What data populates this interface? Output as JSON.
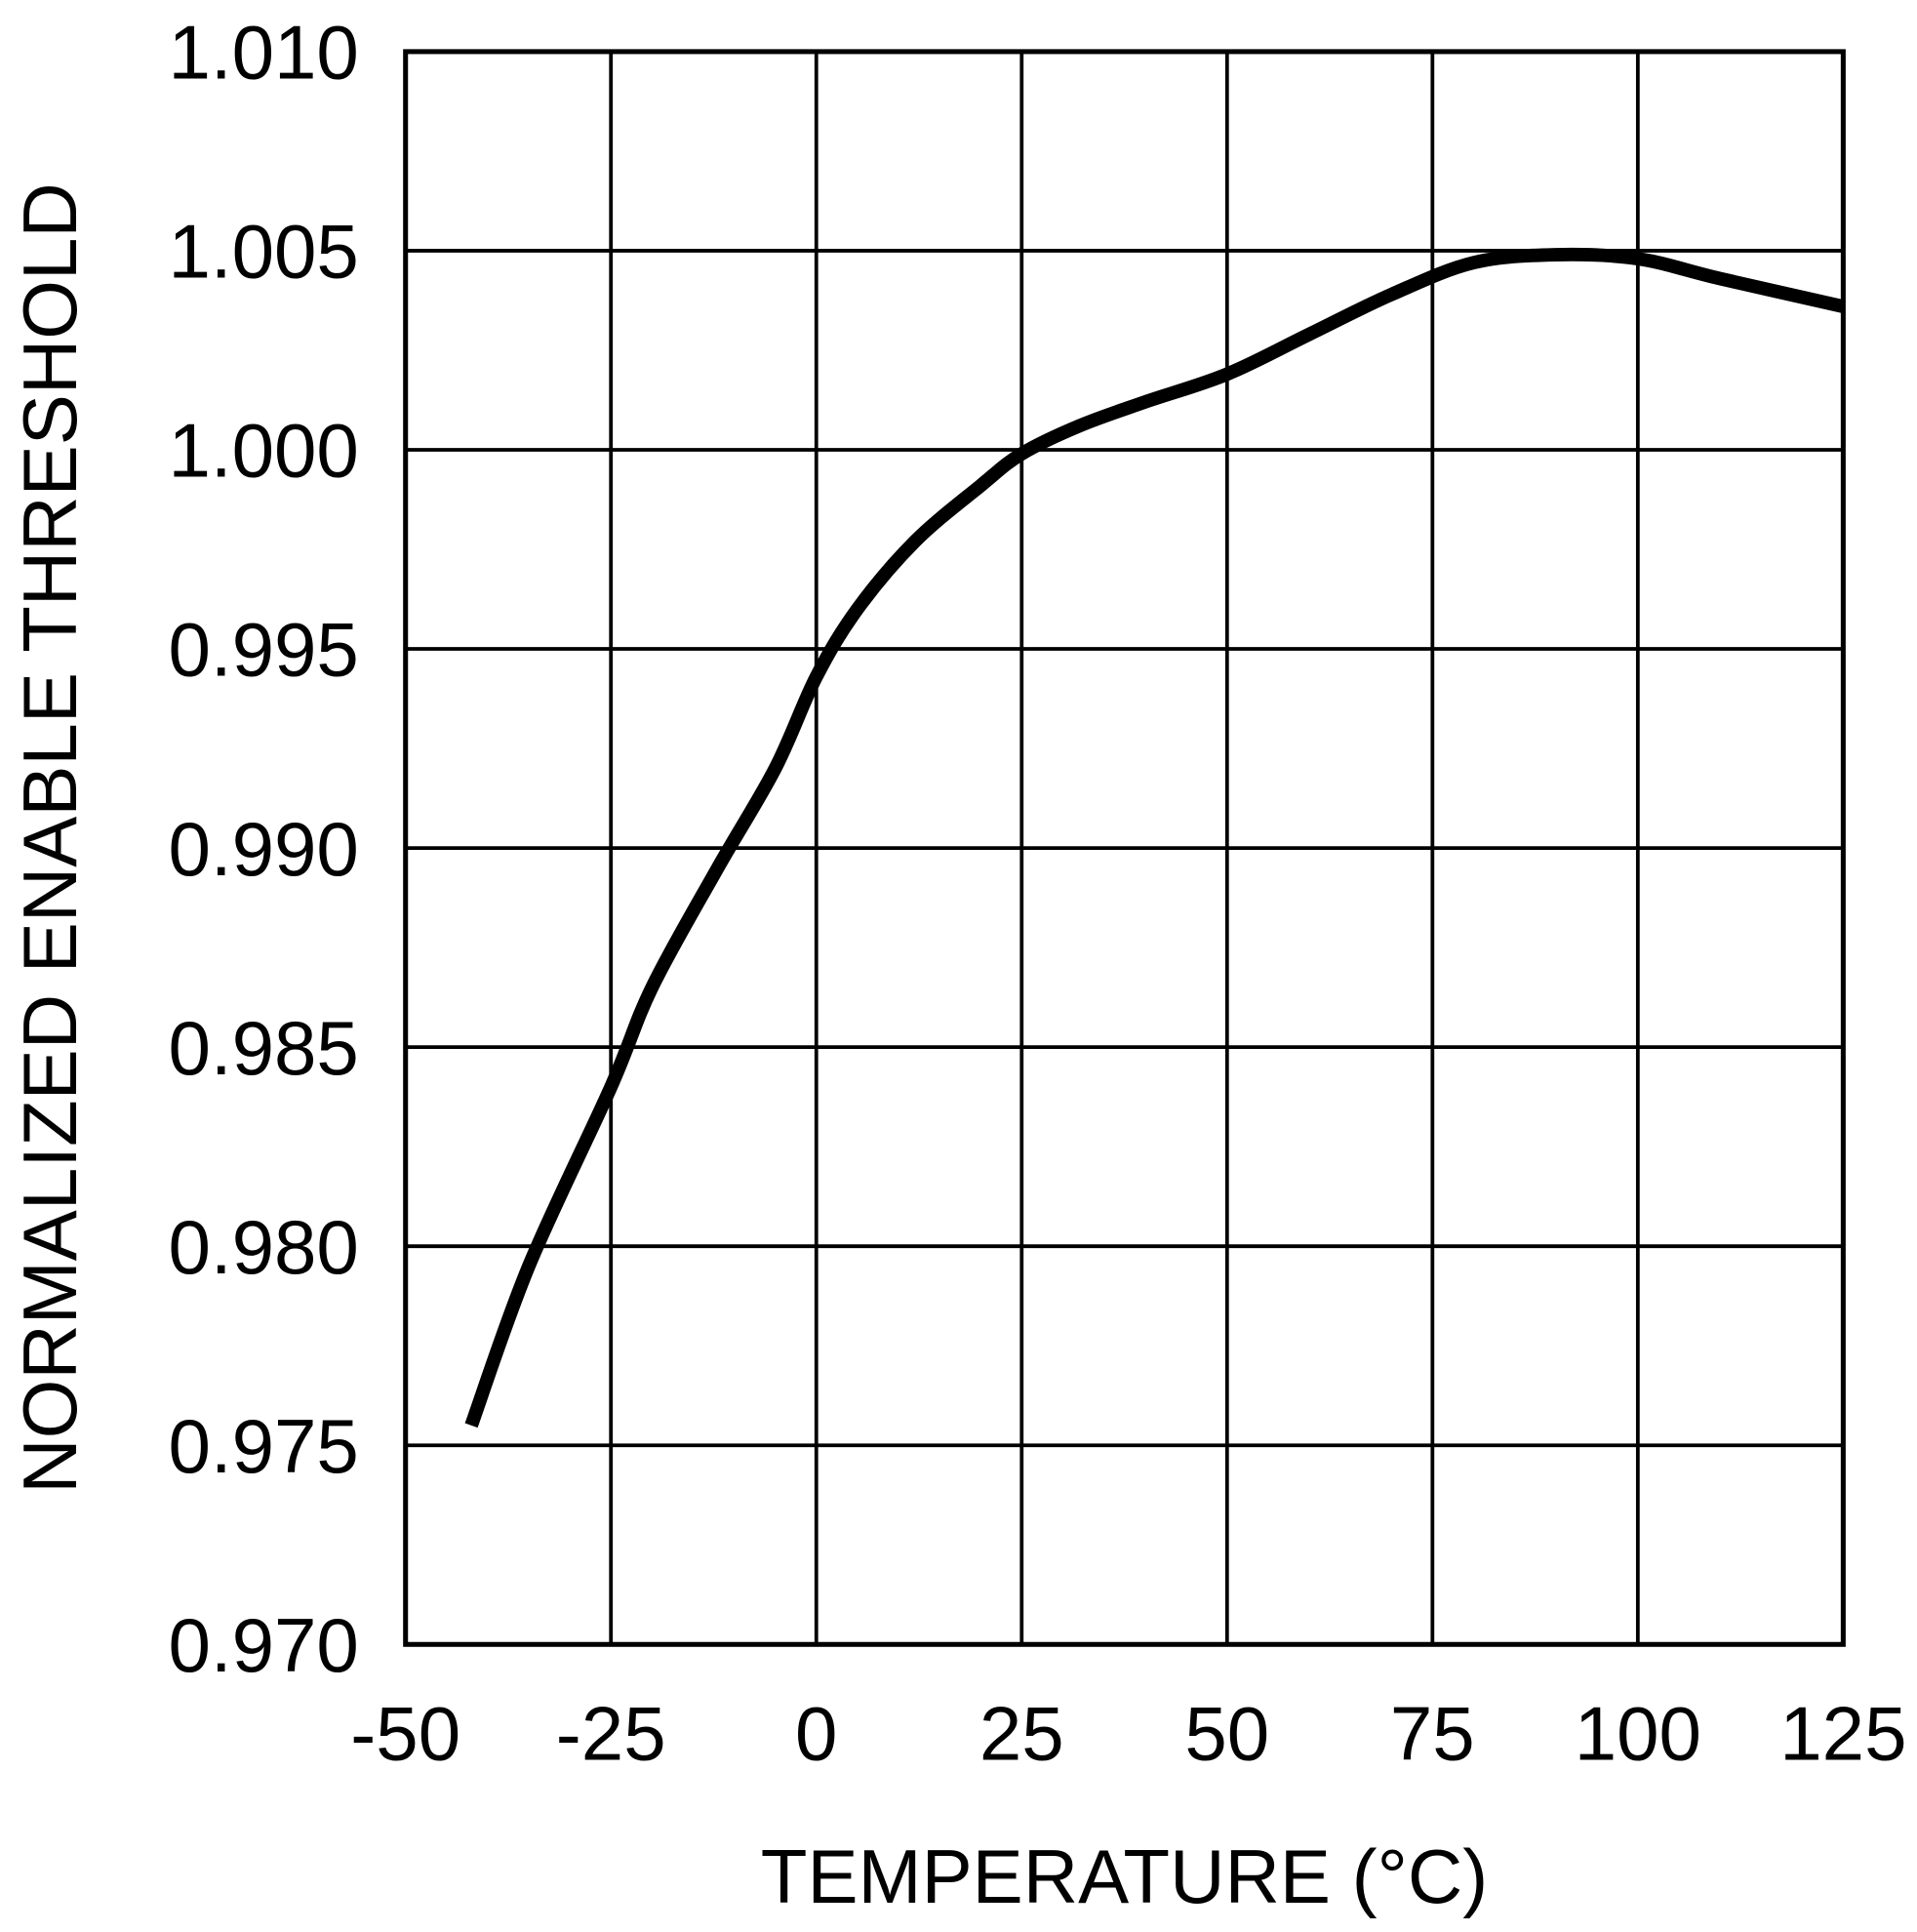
{
  "chart_data": {
    "type": "line",
    "title": "",
    "xlabel": "TEMPERATURE (°C)",
    "ylabel": "NORMALIZED ENABLE THRESHOLD",
    "xlim": [
      -50,
      125
    ],
    "ylim": [
      0.97,
      1.01
    ],
    "grid": true,
    "x_ticks": [
      -50,
      -25,
      0,
      25,
      50,
      75,
      100,
      125
    ],
    "x_tick_labels": [
      "-50",
      "-25",
      "0",
      "25",
      "50",
      "75",
      "100",
      "125"
    ],
    "y_ticks": [
      0.97,
      0.975,
      0.98,
      0.985,
      0.99,
      0.995,
      1.0,
      1.005,
      1.01
    ],
    "y_tick_labels": [
      "0.970",
      "0.975",
      "0.980",
      "0.985",
      "0.990",
      "0.995",
      "1.000",
      "1.005",
      "1.010"
    ],
    "series": [
      {
        "color": "#000000",
        "x": [
          -42,
          -35,
          -25,
          -20,
          -12,
          -5,
          0,
          5,
          12,
          20,
          25,
          32,
          40,
          50,
          60,
          70,
          80,
          90,
          100,
          110,
          125
        ],
        "y": [
          0.9755,
          0.9795,
          0.984,
          0.9865,
          0.9895,
          0.992,
          0.9943,
          0.996,
          0.9977,
          0.9991,
          0.9999,
          1.0006,
          1.0012,
          1.0019,
          1.0029,
          1.0039,
          1.0047,
          1.0049,
          1.0048,
          1.0043,
          1.0036
        ]
      }
    ]
  }
}
